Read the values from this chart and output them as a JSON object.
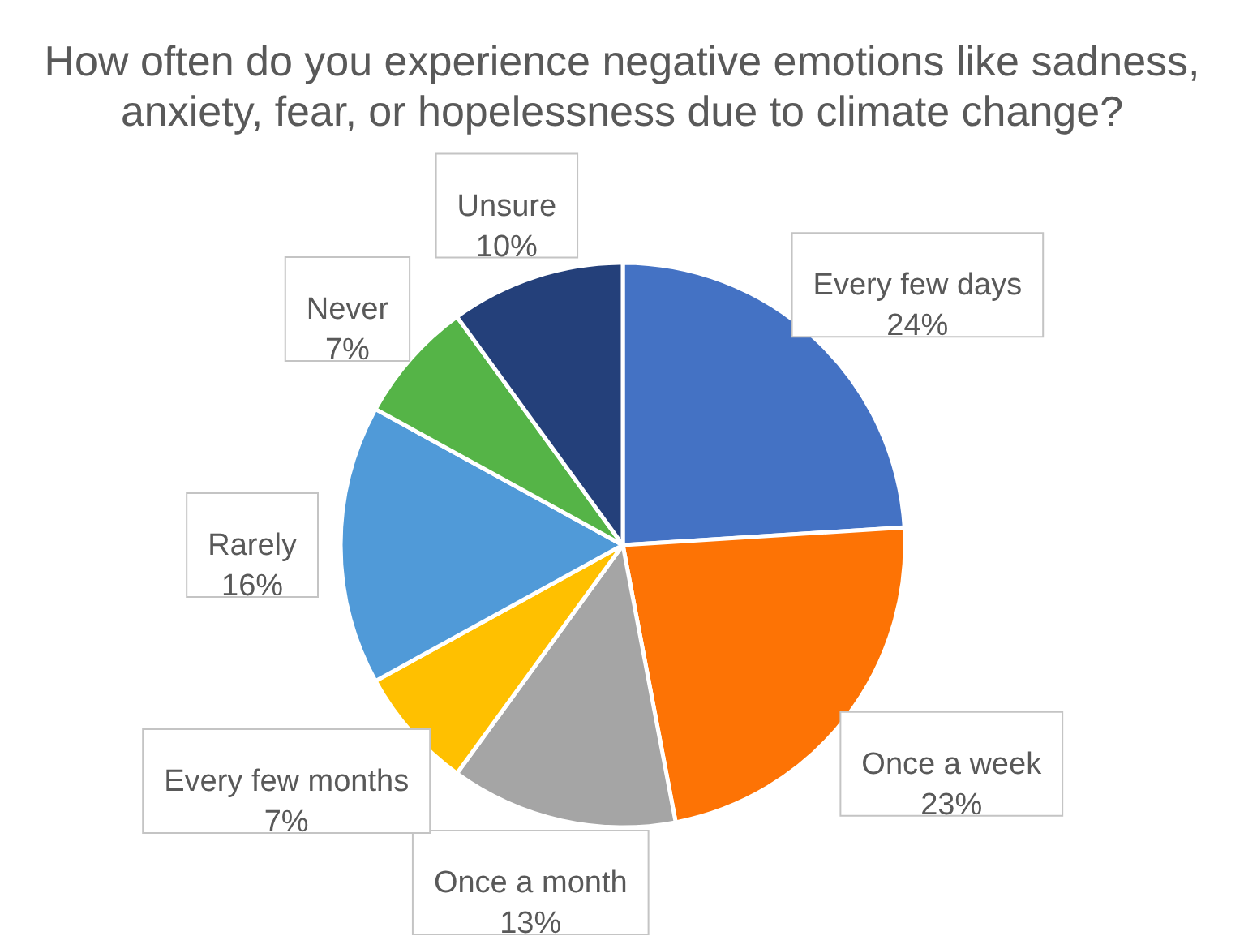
{
  "chart_data": {
    "type": "pie",
    "title": "How often do you experience negative emotions like sadness, anxiety, fear, or hopelessness due to climate change?",
    "categories": [
      "Every few days",
      "Once a week",
      "Once a month",
      "Every few months",
      "Rarely",
      "Never",
      "Unsure"
    ],
    "values": [
      24,
      23,
      13,
      7,
      16,
      7,
      10
    ],
    "value_labels": [
      "24%",
      "23%",
      "13%",
      "7%",
      "16%",
      "7%",
      "10%"
    ],
    "colors": [
      "#4472c4",
      "#fd7305",
      "#a5a5a5",
      "#ffc000",
      "#509ad8",
      "#55b447",
      "#24407a"
    ],
    "legend": false
  }
}
